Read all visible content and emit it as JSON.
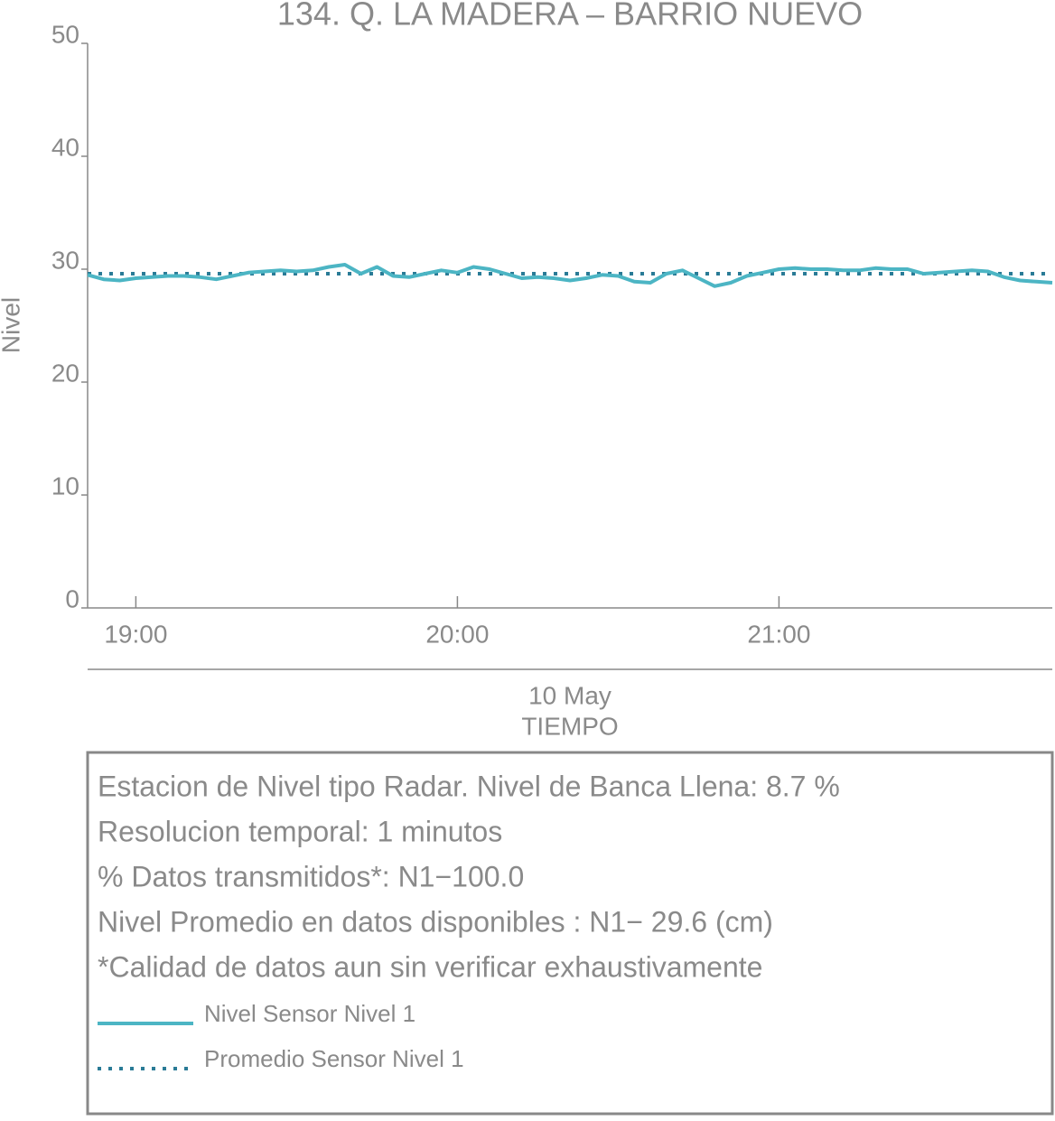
{
  "chart_data": {
    "type": "line",
    "title": "134. Q. LA MADERA – BARRIO NUEVO",
    "ylabel": "Nivel",
    "xlabel": "TIEMPO",
    "date_label": "10 May",
    "x": [
      "18:51",
      "18:54",
      "18:57",
      "19:00",
      "19:03",
      "19:06",
      "19:09",
      "19:12",
      "19:15",
      "19:18",
      "19:21",
      "19:24",
      "19:27",
      "19:30",
      "19:33",
      "19:36",
      "19:39",
      "19:42",
      "19:45",
      "19:48",
      "19:51",
      "19:54",
      "19:57",
      "20:00",
      "20:03",
      "20:06",
      "20:09",
      "20:12",
      "20:15",
      "20:18",
      "20:21",
      "20:24",
      "20:27",
      "20:30",
      "20:33",
      "20:36",
      "20:39",
      "20:42",
      "20:45",
      "20:48",
      "20:51",
      "20:54",
      "20:57",
      "21:00",
      "21:03",
      "21:06",
      "21:09",
      "21:12",
      "21:15",
      "21:18",
      "21:21",
      "21:24",
      "21:27",
      "21:30",
      "21:33",
      "21:36",
      "21:39",
      "21:42",
      "21:45",
      "21:48",
      "21:51"
    ],
    "series": [
      {
        "name": "Nivel Sensor Nivel 1",
        "color": "#4cb5c4",
        "values": [
          29.5,
          29.1,
          29.0,
          29.2,
          29.3,
          29.4,
          29.4,
          29.3,
          29.1,
          29.4,
          29.7,
          29.8,
          29.9,
          29.8,
          29.9,
          30.2,
          30.4,
          29.6,
          30.2,
          29.4,
          29.3,
          29.6,
          29.9,
          29.7,
          30.2,
          30.0,
          29.6,
          29.2,
          29.3,
          29.2,
          29.0,
          29.2,
          29.5,
          29.4,
          28.9,
          28.8,
          29.6,
          29.9,
          29.2,
          28.5,
          28.8,
          29.4,
          29.7,
          30.0,
          30.1,
          30.0,
          30.0,
          29.9,
          29.9,
          30.1,
          30.0,
          30.0,
          29.6,
          29.7,
          29.8,
          29.9,
          29.8,
          29.3,
          29.0,
          28.9,
          28.8
        ]
      }
    ],
    "hlines": [
      {
        "name": "Promedio Sensor Nivel 1",
        "color": "#2a7b96",
        "value": 29.6,
        "style": "dotted"
      }
    ],
    "xlim": [
      "18:51",
      "21:51"
    ],
    "xticks": [
      "19:00",
      "20:00",
      "21:00"
    ],
    "ylim": [
      0,
      50
    ],
    "yticks": [
      0,
      10,
      20,
      30,
      40,
      50
    ]
  },
  "info_box": {
    "lines": [
      "Estacion de Nivel tipo Radar. Nivel de Banca Llena:  8.7 %",
      "Resolucion temporal: 1 minutos",
      "% Datos transmitidos*: N1−100.0",
      "Nivel Promedio en datos disponibles : N1− 29.6 (cm)",
      "*Calidad de datos aun sin verificar exhaustivamente"
    ]
  }
}
